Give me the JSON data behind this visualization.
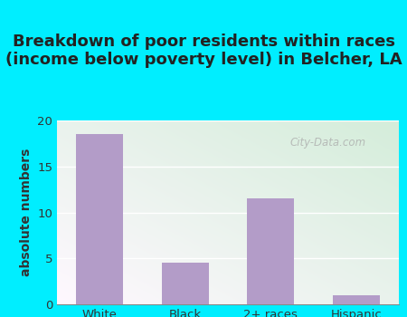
{
  "title": "Breakdown of poor residents within races\n(income below poverty level) in Belcher, LA",
  "categories": [
    "White",
    "Black",
    "2+ races",
    "Hispanic"
  ],
  "values": [
    18.5,
    4.5,
    11.5,
    1.0
  ],
  "bar_color": "#b39cc8",
  "ylabel": "absolute numbers",
  "ylim": [
    0,
    20
  ],
  "yticks": [
    0,
    5,
    10,
    15,
    20
  ],
  "background_outer": "#00eeff",
  "title_fontsize": 13,
  "title_color": "#222222",
  "axis_label_fontsize": 10,
  "tick_fontsize": 9.5,
  "watermark": "City-Data.com",
  "bar_width": 0.55
}
